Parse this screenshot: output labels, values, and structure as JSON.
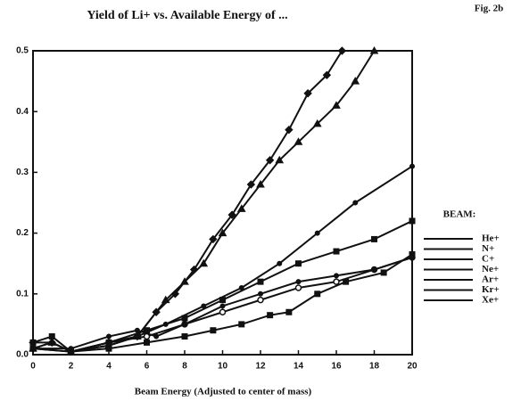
{
  "chart_data": {
    "type": "line",
    "title": "Yield of Li+ vs. Available Energy of ...",
    "figure_label": "Fig. 2b",
    "x_label": "Beam Energy (Adjusted to center of mass)",
    "legend_title": "BEAM:",
    "xlim": [
      0,
      20
    ],
    "xticks": [
      0,
      2,
      4,
      6,
      8,
      10,
      12,
      14,
      16,
      18,
      20
    ],
    "ylim": [
      0,
      0.5
    ],
    "yticks": [
      {
        "value": 0,
        "label": "0.0"
      },
      0.1,
      0.2,
      0.3,
      0.4,
      0.5
    ],
    "grid": false,
    "series": [
      {
        "name": "He+",
        "color": "#111111",
        "marker": "circle",
        "x": [
          0,
          1,
          2,
          4,
          5.5,
          7,
          9,
          11,
          13,
          15,
          17,
          20
        ],
        "values": [
          0.01,
          0.02,
          0.005,
          0.015,
          0.03,
          0.05,
          0.08,
          0.11,
          0.15,
          0.2,
          0.25,
          0.31
        ]
      },
      {
        "name": "N+",
        "color": "#111111",
        "marker": "triangle",
        "x": [
          0,
          1,
          2,
          4,
          5.5,
          7,
          8,
          9,
          10,
          11,
          12,
          13,
          14,
          15,
          16,
          17,
          18
        ],
        "values": [
          0.01,
          0.02,
          0.005,
          0.015,
          0.03,
          0.09,
          0.12,
          0.15,
          0.2,
          0.24,
          0.28,
          0.32,
          0.35,
          0.38,
          0.41,
          0.45,
          0.5
        ]
      },
      {
        "name": "C+",
        "color": "#111111",
        "marker": "ring",
        "x": [
          0,
          2,
          4,
          6,
          8,
          10,
          12,
          14,
          16,
          18,
          20
        ],
        "values": [
          0.01,
          0.005,
          0.02,
          0.03,
          0.05,
          0.07,
          0.09,
          0.11,
          0.12,
          0.14,
          0.16
        ]
      },
      {
        "name": "Ne+",
        "color": "#111111",
        "marker": "diamond",
        "x": [
          0,
          1,
          2,
          4,
          5.5,
          6.5,
          7.5,
          8.5,
          9.5,
          10.5,
          11.5,
          12.5,
          13.5,
          14.5,
          15.5,
          16.3
        ],
        "values": [
          0.02,
          0.02,
          0.005,
          0.02,
          0.03,
          0.07,
          0.1,
          0.14,
          0.19,
          0.23,
          0.28,
          0.32,
          0.37,
          0.43,
          0.46,
          0.5
        ]
      },
      {
        "name": "Ar+",
        "color": "#111111",
        "marker": "square",
        "x": [
          0,
          2,
          4,
          6,
          8,
          10,
          12,
          14,
          16,
          18,
          20
        ],
        "values": [
          0.01,
          0.005,
          0.02,
          0.04,
          0.06,
          0.09,
          0.12,
          0.15,
          0.17,
          0.19,
          0.22
        ]
      },
      {
        "name": "Kr+",
        "color": "#111111",
        "marker": "square",
        "x": [
          0,
          1,
          2,
          4,
          6,
          8,
          9.5,
          11,
          12.5,
          13.5,
          15,
          16.5,
          18.5,
          20
        ],
        "values": [
          0.02,
          0.03,
          0.005,
          0.01,
          0.02,
          0.03,
          0.04,
          0.05,
          0.065,
          0.07,
          0.1,
          0.12,
          0.135,
          0.165
        ]
      },
      {
        "name": "Xe+",
        "color": "#111111",
        "marker": "circle",
        "x": [
          0,
          2,
          4,
          5.5,
          6.5,
          8,
          10,
          12,
          14,
          16,
          18,
          20
        ],
        "values": [
          0.01,
          0.01,
          0.03,
          0.04,
          0.03,
          0.05,
          0.08,
          0.1,
          0.12,
          0.13,
          0.14,
          0.16
        ]
      }
    ]
  }
}
